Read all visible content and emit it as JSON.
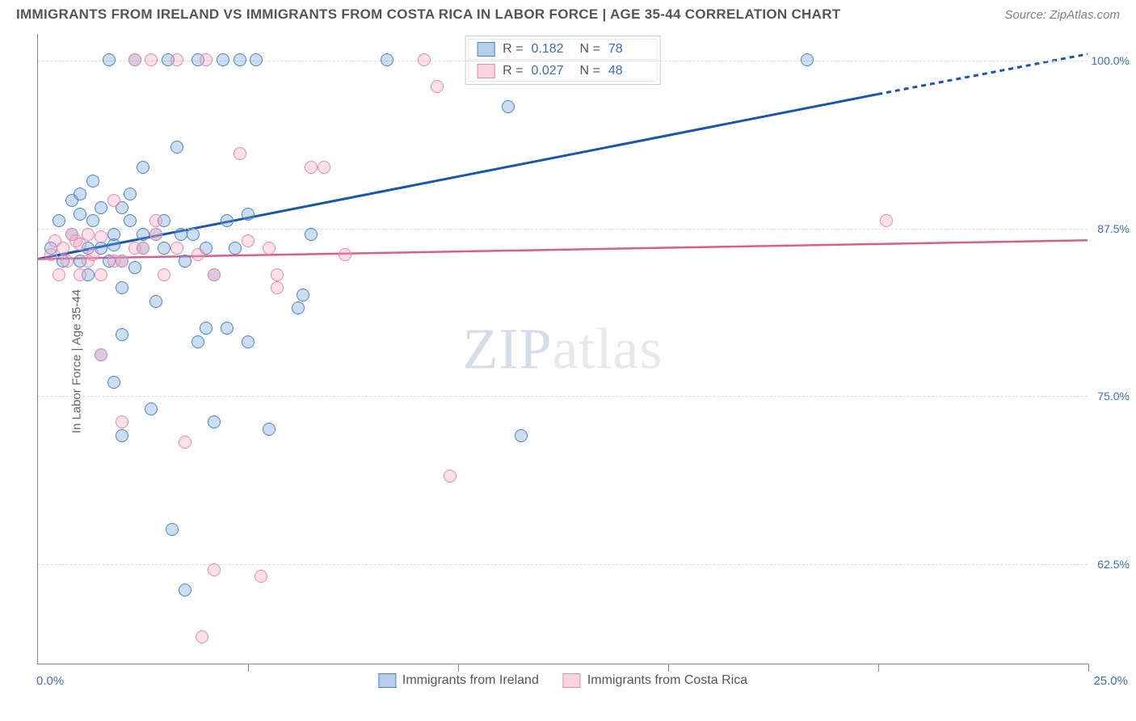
{
  "title": "IMMIGRANTS FROM IRELAND VS IMMIGRANTS FROM COSTA RICA IN LABOR FORCE | AGE 35-44 CORRELATION CHART",
  "source": "Source: ZipAtlas.com",
  "ylabel": "In Labor Force | Age 35-44",
  "watermark_a": "ZIP",
  "watermark_b": "atlas",
  "chart": {
    "type": "scatter",
    "xlim": [
      0,
      25
    ],
    "ylim": [
      55,
      102
    ],
    "y_ticks": [
      62.5,
      75.0,
      87.5,
      100.0
    ],
    "y_tick_labels": [
      "62.5%",
      "75.0%",
      "87.5%",
      "100.0%"
    ],
    "x_min_label": "0.0%",
    "x_max_label": "25.0%",
    "x_tick_positions": [
      0,
      5,
      10,
      15,
      20,
      25
    ],
    "background_color": "#ffffff",
    "grid_color": "#dcdcdc",
    "axis_color": "#888888",
    "label_color": "#3b6db8",
    "marker_size": 16,
    "series": [
      {
        "name": "Immigrants from Ireland",
        "class": "blue",
        "fill": "rgba(106,158,216,0.35)",
        "stroke": "#4a84c4",
        "R": "0.182",
        "N": "78",
        "trend": {
          "x1": 0,
          "y1": 85.2,
          "x2": 20,
          "y2": 97.5,
          "x2_dash": 25,
          "y2_dash": 100.5,
          "color": "#1956b0",
          "width": 3
        },
        "points": [
          [
            0.3,
            86
          ],
          [
            0.5,
            88
          ],
          [
            0.6,
            85
          ],
          [
            0.8,
            89.5
          ],
          [
            0.8,
            87
          ],
          [
            1.0,
            85
          ],
          [
            1.0,
            90
          ],
          [
            1.0,
            88.5
          ],
          [
            1.2,
            86
          ],
          [
            1.2,
            84
          ],
          [
            1.3,
            91
          ],
          [
            1.3,
            88
          ],
          [
            1.5,
            86
          ],
          [
            1.5,
            89
          ],
          [
            1.5,
            78
          ],
          [
            1.7,
            100
          ],
          [
            1.7,
            85
          ],
          [
            1.8,
            87
          ],
          [
            1.8,
            86.2
          ],
          [
            1.8,
            76
          ],
          [
            2.0,
            89
          ],
          [
            2.0,
            85
          ],
          [
            2.0,
            83
          ],
          [
            2.0,
            79.5
          ],
          [
            2.0,
            72
          ],
          [
            2.2,
            88
          ],
          [
            2.2,
            90
          ],
          [
            2.3,
            100
          ],
          [
            2.3,
            84.5
          ],
          [
            2.5,
            86
          ],
          [
            2.5,
            87
          ],
          [
            2.5,
            92
          ],
          [
            2.7,
            74
          ],
          [
            2.8,
            87
          ],
          [
            2.8,
            82
          ],
          [
            3.0,
            86
          ],
          [
            3.0,
            88
          ],
          [
            3.1,
            100
          ],
          [
            3.2,
            65
          ],
          [
            3.3,
            93.5
          ],
          [
            3.4,
            87
          ],
          [
            3.5,
            60.5
          ],
          [
            3.5,
            85
          ],
          [
            3.7,
            87
          ],
          [
            3.8,
            100
          ],
          [
            3.8,
            79
          ],
          [
            4.0,
            86
          ],
          [
            4.0,
            80
          ],
          [
            4.2,
            84
          ],
          [
            4.2,
            73
          ],
          [
            4.4,
            100
          ],
          [
            4.5,
            88
          ],
          [
            4.5,
            80
          ],
          [
            4.7,
            86
          ],
          [
            4.8,
            100
          ],
          [
            5.0,
            88.5
          ],
          [
            5.0,
            79
          ],
          [
            5.2,
            100
          ],
          [
            5.5,
            72.5
          ],
          [
            6.2,
            81.5
          ],
          [
            6.3,
            82.5
          ],
          [
            6.5,
            87
          ],
          [
            8.3,
            100
          ],
          [
            11.2,
            96.5
          ],
          [
            11.5,
            72
          ],
          [
            18.3,
            100
          ]
        ]
      },
      {
        "name": "Immigrants from Costa Rica",
        "class": "pink",
        "fill": "rgba(244,167,192,0.35)",
        "stroke": "#e28bab",
        "R": "0.027",
        "N": "48",
        "trend": {
          "x1": 0,
          "y1": 85.2,
          "x2": 25,
          "y2": 86.6,
          "color": "#de5c8c",
          "width": 2.5
        },
        "points": [
          [
            0.3,
            85.5
          ],
          [
            0.4,
            86.5
          ],
          [
            0.5,
            84
          ],
          [
            0.6,
            86
          ],
          [
            0.7,
            85
          ],
          [
            0.8,
            87
          ],
          [
            0.9,
            86.5
          ],
          [
            1.0,
            84
          ],
          [
            1.0,
            86.3
          ],
          [
            1.2,
            85
          ],
          [
            1.2,
            87
          ],
          [
            1.3,
            85.5
          ],
          [
            1.5,
            84
          ],
          [
            1.5,
            86.8
          ],
          [
            1.5,
            78
          ],
          [
            1.8,
            85
          ],
          [
            1.8,
            89.5
          ],
          [
            2.0,
            85
          ],
          [
            2.0,
            73
          ],
          [
            2.3,
            100
          ],
          [
            2.3,
            86
          ],
          [
            2.5,
            86
          ],
          [
            2.7,
            100
          ],
          [
            2.8,
            87
          ],
          [
            2.8,
            88
          ],
          [
            3.0,
            84
          ],
          [
            3.3,
            86
          ],
          [
            3.3,
            100
          ],
          [
            3.5,
            71.5
          ],
          [
            3.8,
            85.5
          ],
          [
            3.9,
            57
          ],
          [
            4.0,
            100
          ],
          [
            4.2,
            84
          ],
          [
            4.2,
            62
          ],
          [
            4.8,
            93
          ],
          [
            5.0,
            86.5
          ],
          [
            5.3,
            61.5
          ],
          [
            5.5,
            86
          ],
          [
            5.7,
            84
          ],
          [
            5.7,
            83
          ],
          [
            6.5,
            92
          ],
          [
            6.8,
            92
          ],
          [
            7.3,
            85.5
          ],
          [
            9.2,
            100
          ],
          [
            9.5,
            98
          ],
          [
            9.8,
            69
          ],
          [
            20.2,
            88
          ]
        ]
      }
    ]
  },
  "legend_top": [
    {
      "class": "blue",
      "r_label": "R =",
      "r": "0.182",
      "n_label": "N =",
      "n": "78"
    },
    {
      "class": "pink",
      "r_label": "R =",
      "r": "0.027",
      "n_label": "N =",
      "n": "48"
    }
  ],
  "legend_bottom": [
    {
      "class": "blue",
      "label": "Immigrants from Ireland"
    },
    {
      "class": "pink",
      "label": "Immigrants from Costa Rica"
    }
  ]
}
